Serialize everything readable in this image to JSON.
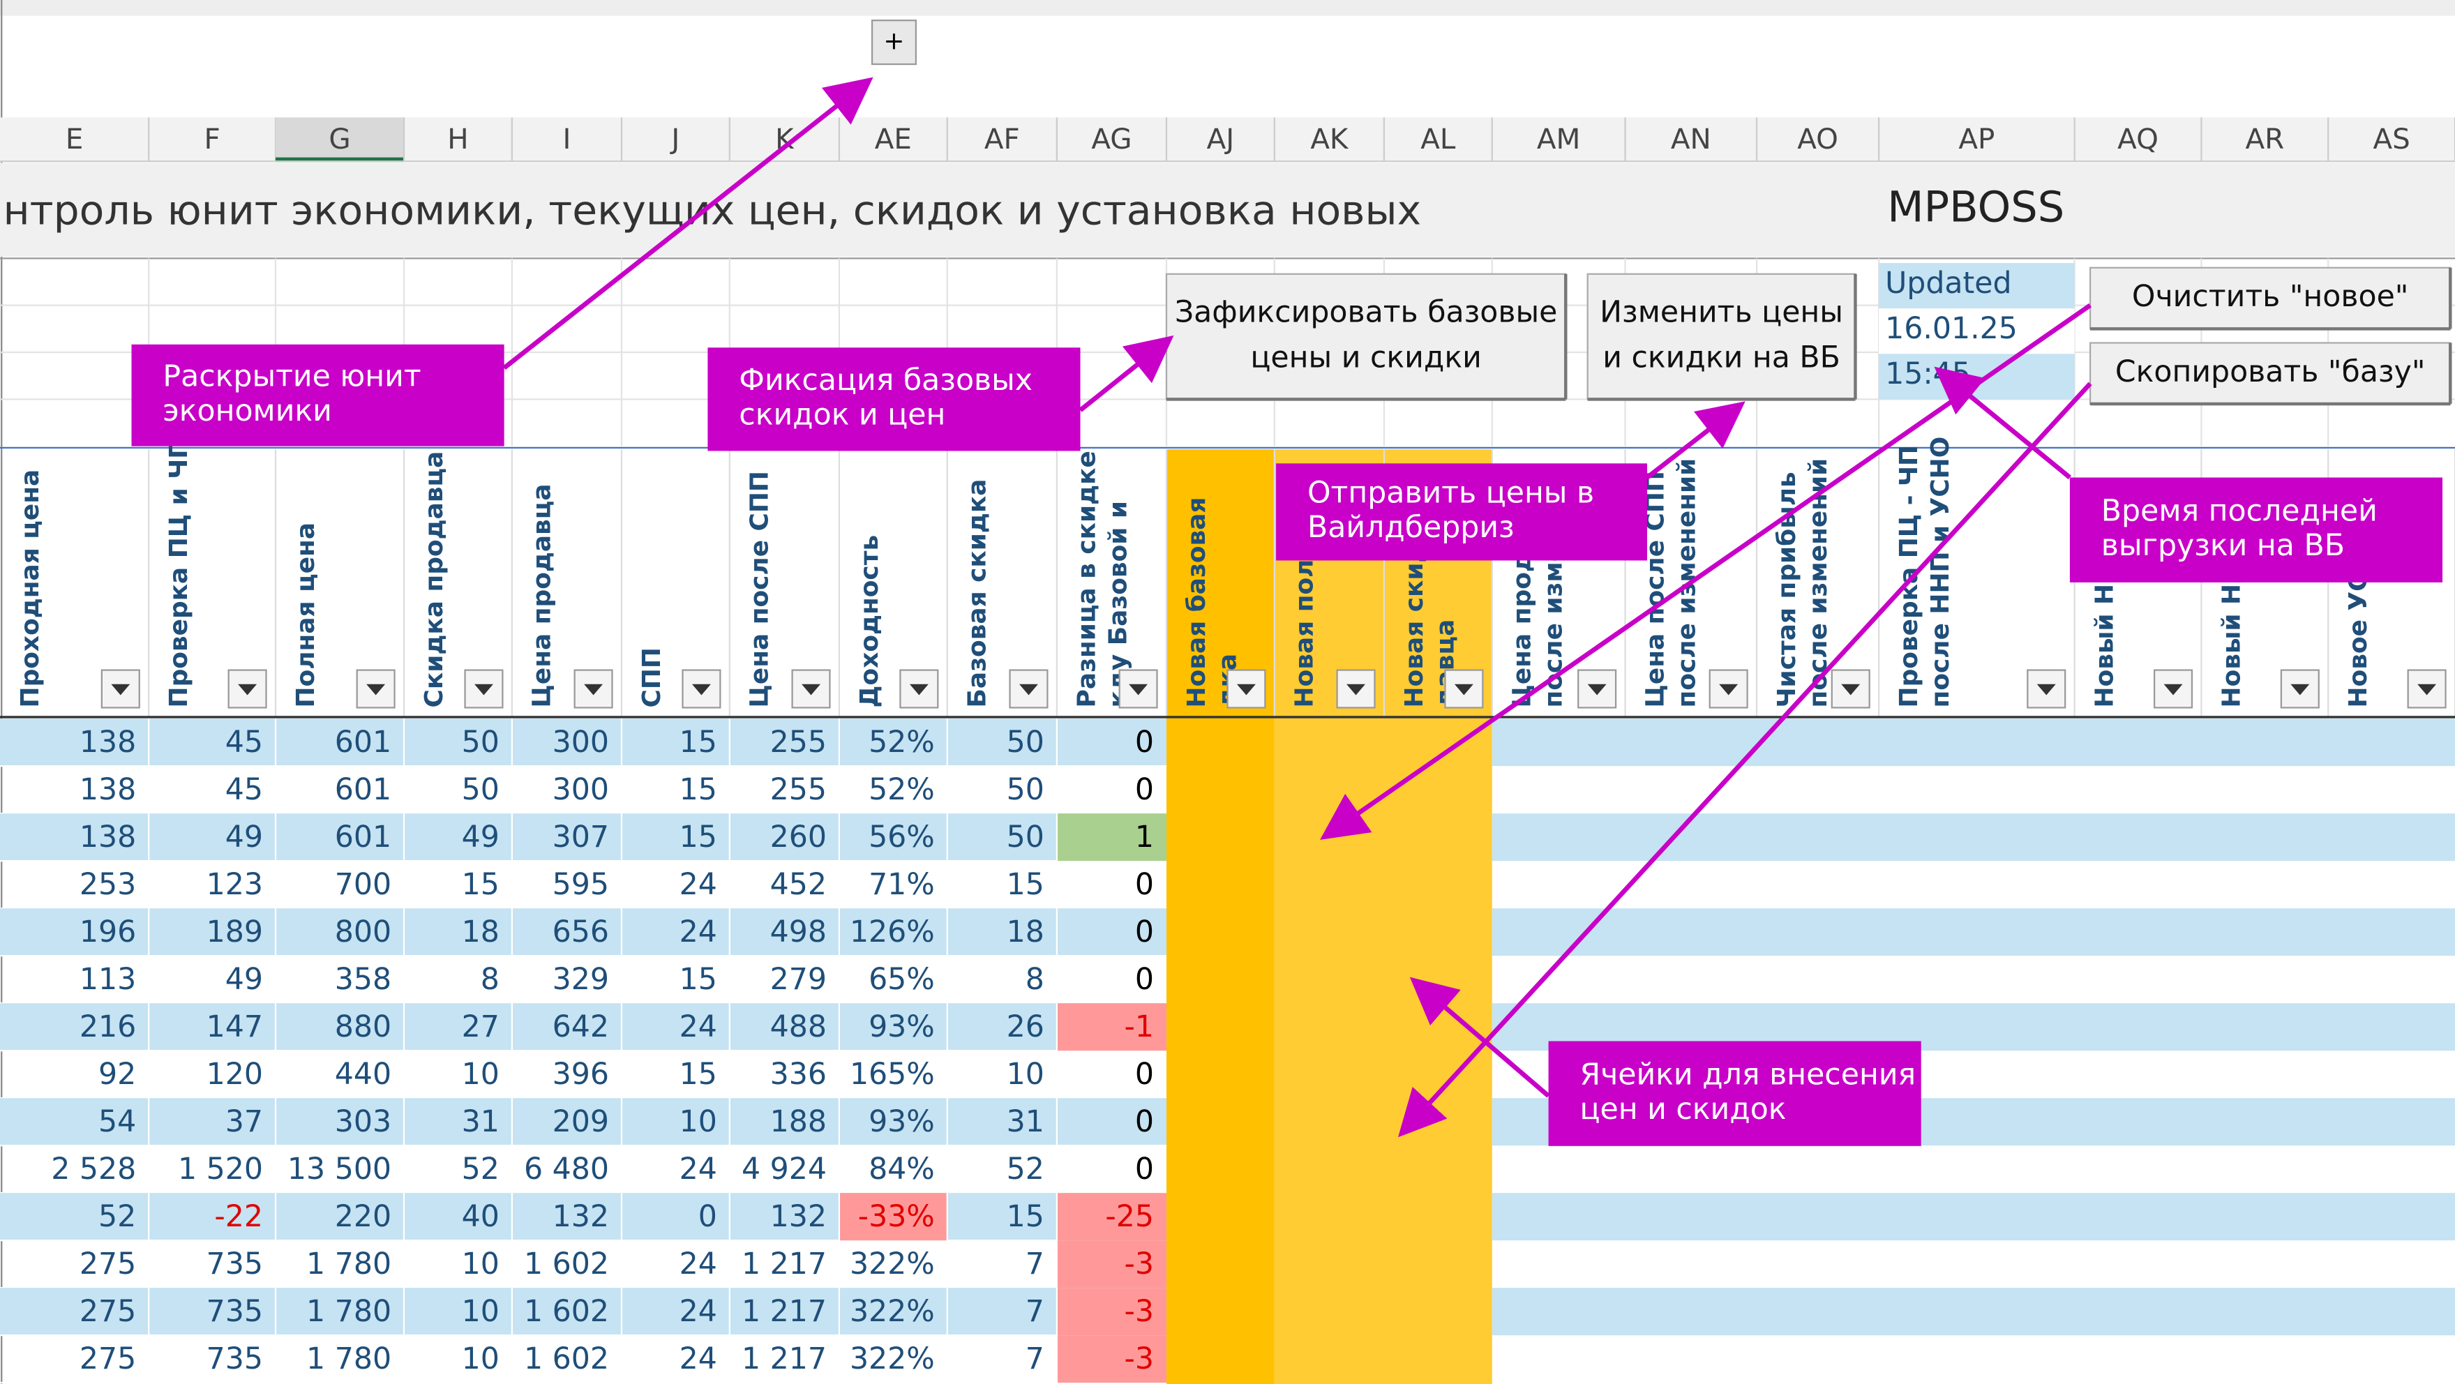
{
  "expand_button": "+",
  "column_letters": [
    "E",
    "F",
    "G",
    "H",
    "I",
    "J",
    "K",
    "AE",
    "AF",
    "AG",
    "AJ",
    "AK",
    "AL",
    "AM",
    "AN",
    "AO",
    "AP",
    "AQ",
    "AR",
    "AS"
  ],
  "title": "нтроль юнит экономики, текущих цен, скидок и установка новых",
  "logo": "MPBOSS",
  "buttons": {
    "fix": [
      "Зафиксировать базовые",
      "цены и скидки"
    ],
    "change": [
      "Изменить цены",
      "и скидки на ВБ"
    ],
    "clear": "Очистить \"новое\"",
    "copy": "Скопировать \"базу\""
  },
  "updated": {
    "label": "Updated",
    "date": "16.01.25",
    "time": "15:45"
  },
  "headers": [
    [
      "Проходная цена"
    ],
    [
      "Проверка ПЦ и ЧП"
    ],
    [
      "Полная цена"
    ],
    [
      "Скидка продавца"
    ],
    [
      "Цена продавца"
    ],
    [
      "СПП"
    ],
    [
      "Цена после СПП"
    ],
    [
      "Доходность"
    ],
    [
      "Базовая скидка"
    ],
    [
      "Разница в скидке",
      "кду Базовой и"
    ],
    [
      "Новая базовая",
      "дка"
    ],
    [
      "Новая полн"
    ],
    [
      "Новая скид",
      "давца"
    ],
    [
      "Цена прод",
      "после изме"
    ],
    [
      "Цена после СПП",
      "после изменений"
    ],
    [
      "Чистая прибыль",
      "после изменений"
    ],
    [
      "Проверка ПЦ - ЧП",
      "после ННП и УСНО"
    ],
    [
      "Новый НН"
    ],
    [
      "Новый НД"
    ],
    [
      "Новое УС"
    ]
  ],
  "rows": [
    [
      "138",
      "45",
      "601",
      "50",
      "300",
      "15",
      "255",
      "52%",
      "50",
      "0"
    ],
    [
      "138",
      "45",
      "601",
      "50",
      "300",
      "15",
      "255",
      "52%",
      "50",
      "0"
    ],
    [
      "138",
      "49",
      "601",
      "49",
      "307",
      "15",
      "260",
      "56%",
      "50",
      "1"
    ],
    [
      "253",
      "123",
      "700",
      "15",
      "595",
      "24",
      "452",
      "71%",
      "15",
      "0"
    ],
    [
      "196",
      "189",
      "800",
      "18",
      "656",
      "24",
      "498",
      "126%",
      "18",
      "0"
    ],
    [
      "113",
      "49",
      "358",
      "8",
      "329",
      "15",
      "279",
      "65%",
      "8",
      "0"
    ],
    [
      "216",
      "147",
      "880",
      "27",
      "642",
      "24",
      "488",
      "93%",
      "26",
      "-1"
    ],
    [
      "92",
      "120",
      "440",
      "10",
      "396",
      "15",
      "336",
      "165%",
      "10",
      "0"
    ],
    [
      "54",
      "37",
      "303",
      "31",
      "209",
      "10",
      "188",
      "93%",
      "31",
      "0"
    ],
    [
      "2 528",
      "1 520",
      "13 500",
      "52",
      "6 480",
      "24",
      "4 924",
      "84%",
      "52",
      "0"
    ],
    [
      "52",
      "-22",
      "220",
      "40",
      "132",
      "0",
      "132",
      "-33%",
      "15",
      "-25"
    ],
    [
      "275",
      "735",
      "1 780",
      "10",
      "1 602",
      "24",
      "1 217",
      "322%",
      "7",
      "-3"
    ],
    [
      "275",
      "735",
      "1 780",
      "10",
      "1 602",
      "24",
      "1 217",
      "322%",
      "7",
      "-3"
    ],
    [
      "275",
      "735",
      "1 780",
      "10",
      "1 602",
      "24",
      "1 217",
      "322%",
      "7",
      "-3"
    ]
  ],
  "annotations": [
    {
      "lines": [
        "Раскрытие юнит",
        "экономики"
      ]
    },
    {
      "lines": [
        "Фиксация базовых",
        "скидок и цен"
      ]
    },
    {
      "lines": [
        "Отправить цены в",
        "Вайлдберриз"
      ]
    },
    {
      "lines": [
        "Время последней",
        "выгрузки на ВБ"
      ]
    },
    {
      "lines": [
        "Ячейки для внесения",
        "цен и скидок"
      ]
    }
  ]
}
